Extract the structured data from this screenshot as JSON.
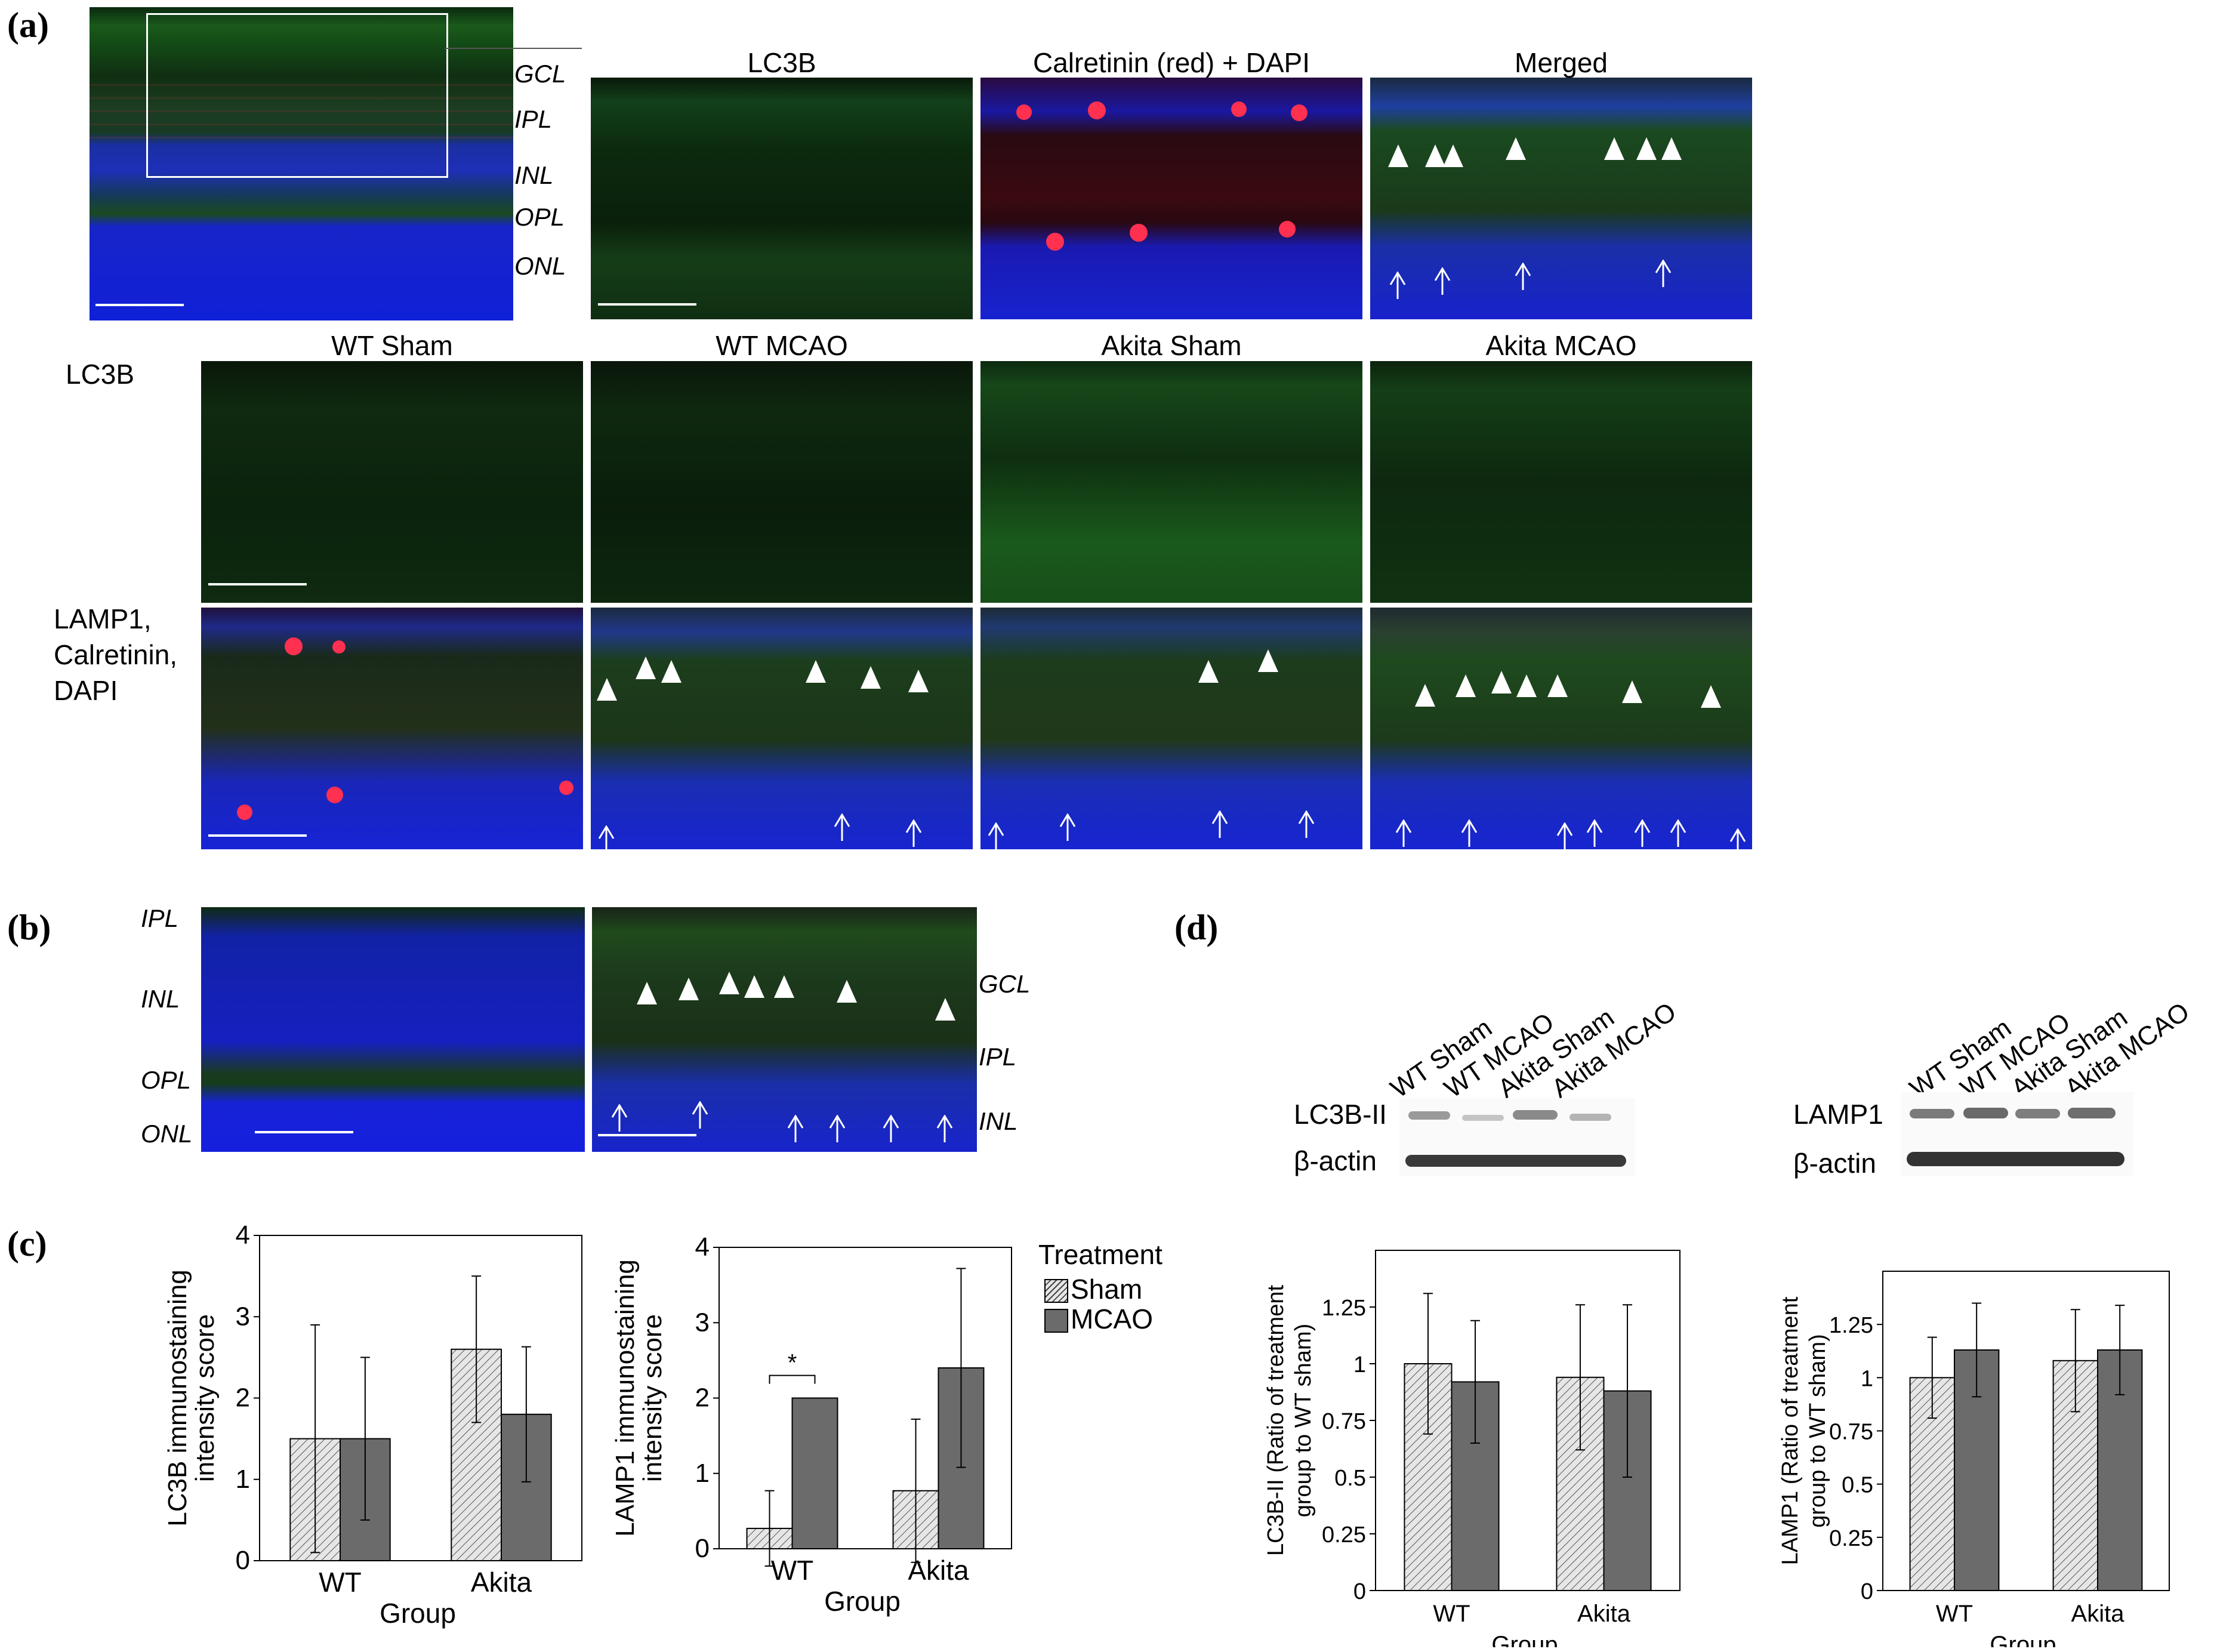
{
  "panels": {
    "a": "(a)",
    "b": "(b)",
    "c": "(c)",
    "d": "(d)"
  },
  "panel_a": {
    "layers": [
      "GCL",
      "IPL",
      "INL",
      "OPL",
      "ONL"
    ],
    "top_titles": [
      "LC3B",
      "Calretinin (red) + DAPI",
      "Merged"
    ],
    "group_titles": [
      "WT Sham",
      "WT MCAO",
      "Akita Sham",
      "Akita MCAO"
    ],
    "row_labels": {
      "lc3b": "LC3B",
      "lamp1": [
        "LAMP1,",
        "Calretinin,",
        "DAPI"
      ]
    }
  },
  "panel_b": {
    "left_layers": [
      "IPL",
      "INL",
      "OPL",
      "ONL"
    ],
    "right_layers": [
      "GCL",
      "IPL",
      "INL"
    ]
  },
  "legend": {
    "title": "Treatment",
    "items": [
      "Sham",
      "MCAO"
    ]
  },
  "colors": {
    "sham_fill": "#e6e6e6",
    "mcao_fill": "#6b6b6b",
    "dapi": "#1a1ae6",
    "lc3b": "#2fae2f",
    "calretinin": "#ff2a40"
  },
  "blots": {
    "lanes": [
      "WT Sham",
      "WT MCAO",
      "Akita Sham",
      "Akita MCAO"
    ],
    "lc3b_rows": [
      "LC3B-II",
      "β-actin"
    ],
    "lamp1_rows": [
      "LAMP1",
      "β-actin"
    ]
  },
  "chart_data": [
    {
      "type": "bar",
      "categories": [
        "WT",
        "Akita"
      ],
      "series": [
        {
          "name": "Sham",
          "values": [
            1.5,
            2.6
          ],
          "errors": [
            1.4,
            0.9
          ]
        },
        {
          "name": "MCAO",
          "values": [
            1.5,
            1.8
          ],
          "errors": [
            1.0,
            0.83
          ]
        }
      ],
      "xlabel": "Group",
      "ylabel": [
        "LC3B immunostaining",
        "intensity score"
      ],
      "ylim": [
        0,
        4
      ],
      "yticks": [
        "0",
        "1",
        "2",
        "3",
        "4"
      ]
    },
    {
      "type": "bar",
      "categories": [
        "WT",
        "Akita"
      ],
      "series": [
        {
          "name": "Sham",
          "values": [
            0.27,
            0.77
          ],
          "errors": [
            0.5,
            0.95
          ]
        },
        {
          "name": "MCAO",
          "values": [
            2.0,
            2.4
          ],
          "errors": [
            0.0,
            1.32
          ]
        }
      ],
      "xlabel": "Group",
      "ylabel": [
        "LAMP1 immunostaining",
        "intensity score"
      ],
      "ylim": [
        0,
        4
      ],
      "yticks": [
        "0",
        "1",
        "2",
        "3",
        "4"
      ],
      "annotation": "*"
    },
    {
      "type": "bar",
      "categories": [
        "WT",
        "Akita"
      ],
      "series": [
        {
          "name": "Sham",
          "values": [
            1.0,
            0.94
          ],
          "errors": [
            0.31,
            0.32
          ]
        },
        {
          "name": "MCAO",
          "values": [
            0.92,
            0.88
          ],
          "errors": [
            0.27,
            0.38
          ]
        }
      ],
      "xlabel": "Group",
      "ylabel": [
        "LC3B-II (Ratio of treatment",
        "group to WT sham)"
      ],
      "ylim": [
        0,
        1.5
      ],
      "yticks": [
        "0",
        "0.25",
        "0.5",
        "0.75",
        "1",
        "1.25"
      ]
    },
    {
      "type": "bar",
      "categories": [
        "WT",
        "Akita"
      ],
      "series": [
        {
          "name": "Sham",
          "values": [
            1.0,
            1.08
          ],
          "errors": [
            0.19,
            0.24
          ]
        },
        {
          "name": "MCAO",
          "values": [
            1.13,
            1.13
          ],
          "errors": [
            0.22,
            0.21
          ]
        }
      ],
      "xlabel": "Group",
      "ylabel": [
        "LAMP1 (Ratio of treatment",
        "group to WT sham)"
      ],
      "ylim": [
        0,
        1.5
      ],
      "yticks": [
        "0",
        "0.25",
        "0.5",
        "0.75",
        "1",
        "1.25"
      ]
    }
  ]
}
